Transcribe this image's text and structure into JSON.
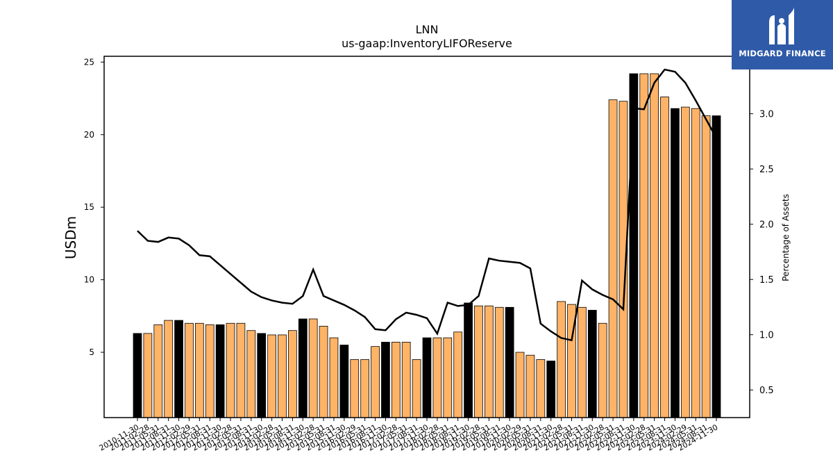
{
  "chart_data": {
    "type": "bar",
    "title": "LNN",
    "subtitle": "us-gaap:InventoryLIFOReserve",
    "ylabel": "USDm",
    "y2label": "Percentage of Assets",
    "ylim": [
      0.5,
      25.4
    ],
    "y2lim": [
      0.25,
      3.52
    ],
    "yticks": [
      5,
      10,
      15,
      20,
      25
    ],
    "y2ticks": [
      "0.5",
      "1.0",
      "1.5",
      "2.0",
      "2.5",
      "3.0"
    ],
    "colors": {
      "bar_quarter": "#ffb366",
      "bar_fiscal_year_end": "#000000",
      "line": "#000000"
    },
    "categories": [
      "2010-11-30",
      "2011-02-28",
      "2011-05-31",
      "2011-08-31",
      "2011-11-30",
      "2012-02-29",
      "2012-05-31",
      "2012-08-31",
      "2012-11-30",
      "2013-02-28",
      "2013-05-31",
      "2013-08-31",
      "2013-11-30",
      "2014-02-28",
      "2014-05-31",
      "2014-08-31",
      "2014-11-30",
      "2015-02-28",
      "2015-05-31",
      "2015-08-31",
      "2015-11-30",
      "2016-02-29",
      "2016-05-31",
      "2016-08-31",
      "2016-11-30",
      "2017-02-28",
      "2017-05-31",
      "2017-08-31",
      "2017-11-30",
      "2018-02-28",
      "2018-05-31",
      "2018-08-31",
      "2018-11-30",
      "2019-02-28",
      "2019-05-31",
      "2019-08-31",
      "2019-11-30",
      "2020-02-29",
      "2020-05-31",
      "2020-08-31",
      "2020-11-30",
      "2021-02-28",
      "2021-05-31",
      "2021-08-31",
      "2021-11-30",
      "2022-02-28",
      "2022-05-31",
      "2022-08-31",
      "2022-11-30",
      "2023-02-28",
      "2023-05-31",
      "2023-08-31",
      "2023-11-30",
      "2024-02-29",
      "2024-05-31",
      "2024-08-31",
      "2024-11-30"
    ],
    "fiscal_year_end": [
      true,
      false,
      false,
      false,
      true,
      false,
      false,
      false,
      true,
      false,
      false,
      false,
      true,
      false,
      false,
      false,
      true,
      false,
      false,
      false,
      true,
      false,
      false,
      false,
      true,
      false,
      false,
      false,
      true,
      false,
      false,
      false,
      true,
      false,
      false,
      false,
      true,
      false,
      false,
      false,
      true,
      false,
      false,
      false,
      true,
      false,
      false,
      false,
      true,
      false,
      false,
      false,
      true,
      false,
      false,
      false,
      true
    ],
    "series": [
      {
        "name": "",
        "kind": "bar",
        "values": [
          6.3,
          6.3,
          6.9,
          7.2,
          7.2,
          7.0,
          7.0,
          6.9,
          6.9,
          7.0,
          7.0,
          6.5,
          6.3,
          6.2,
          6.2,
          6.5,
          7.3,
          7.3,
          6.8,
          6.0,
          5.5,
          4.5,
          4.5,
          5.4,
          5.7,
          5.7,
          5.7,
          4.5,
          6.0,
          6.0,
          6.0,
          6.4,
          8.4,
          8.2,
          8.2,
          8.1,
          8.1,
          5.0,
          4.8,
          4.5,
          4.4,
          8.5,
          8.3,
          8.1,
          7.9,
          7.0,
          22.4,
          22.3,
          24.2,
          24.2,
          24.2,
          22.6,
          21.8,
          21.9,
          21.8,
          21.3,
          21.3
        ]
      },
      {
        "name": "",
        "kind": "line",
        "axis": "right",
        "values": [
          1.94,
          1.85,
          1.84,
          1.88,
          1.87,
          1.81,
          1.72,
          1.71,
          1.63,
          1.55,
          1.47,
          1.39,
          1.34,
          1.31,
          1.29,
          1.28,
          1.35,
          1.59,
          1.35,
          1.31,
          1.27,
          1.22,
          1.16,
          1.05,
          1.04,
          1.14,
          1.2,
          1.18,
          1.15,
          1.01,
          1.29,
          1.26,
          1.27,
          1.35,
          1.69,
          1.67,
          1.66,
          1.65,
          1.6,
          1.1,
          1.03,
          0.97,
          0.95,
          1.49,
          1.41,
          1.36,
          1.32,
          1.23,
          3.05,
          3.04,
          3.28,
          3.4,
          3.38,
          3.28,
          3.12,
          2.95,
          2.78
        ]
      }
    ]
  },
  "logo": {
    "text": "MIDGARD FINANCE"
  }
}
